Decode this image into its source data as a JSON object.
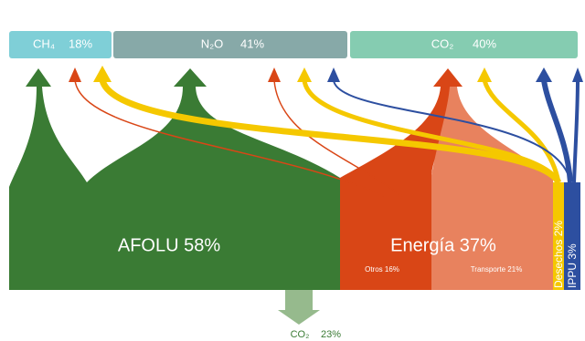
{
  "header": {
    "gases": [
      {
        "label": "CH₄",
        "share": "18%"
      },
      {
        "label": "N₂O",
        "share": "41%"
      },
      {
        "label": "CO₂",
        "share": "40%"
      }
    ]
  },
  "sectors": [
    {
      "label": "AFOLU 58%"
    },
    {
      "label": "Energía 37%",
      "parts": [
        "Otros 16%",
        "Transporte 21%"
      ]
    },
    {
      "label": "Desechos 2%"
    },
    {
      "label": "IPPU 3%"
    }
  ],
  "sink": {
    "label": "CO₂",
    "share": "23%"
  }
}
